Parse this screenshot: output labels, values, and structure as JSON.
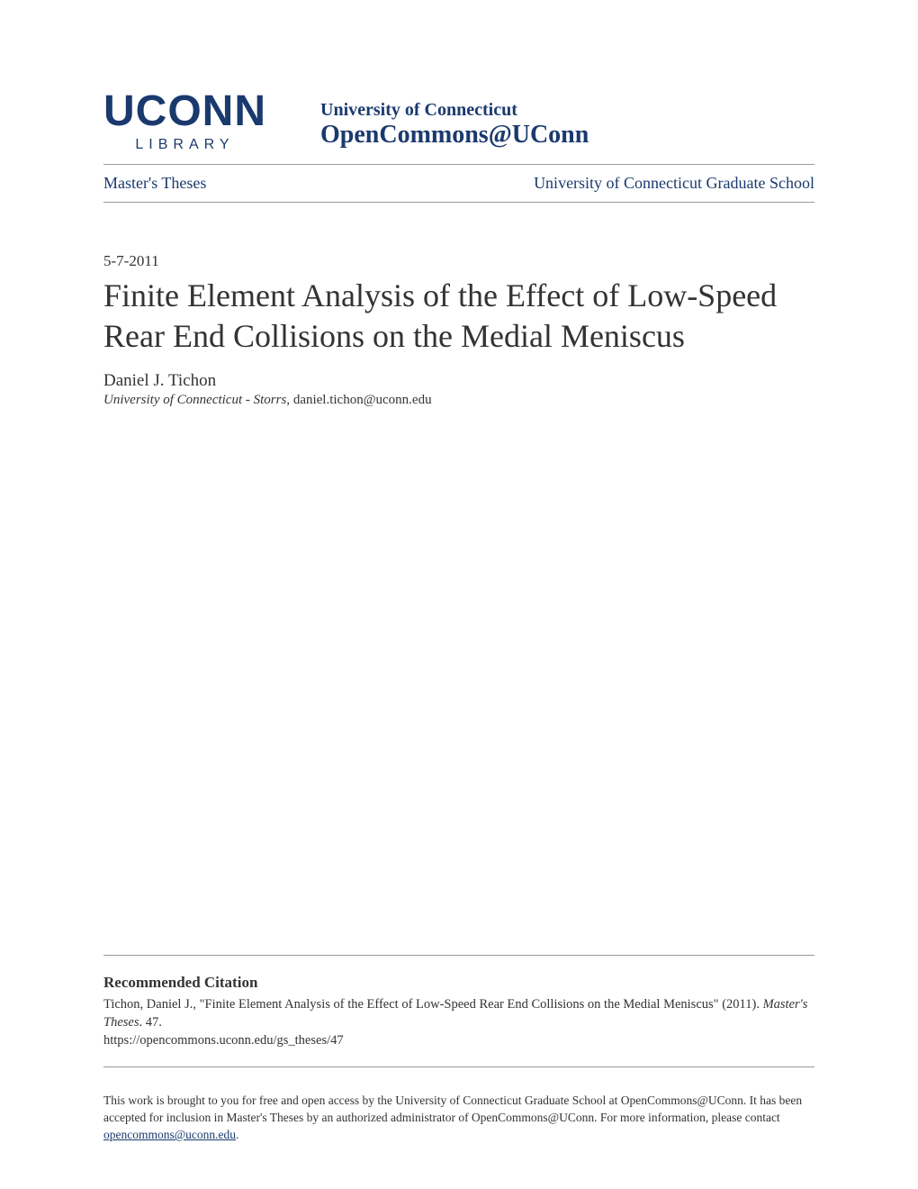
{
  "logo": {
    "main": "UCONN",
    "sub": "LIBRARY"
  },
  "header": {
    "university": "University of Connecticut",
    "repository": "OpenCommons@UConn"
  },
  "nav": {
    "left": "Master's Theses",
    "right": "University of Connecticut Graduate School"
  },
  "date": "5-7-2011",
  "title": "Finite Element Analysis of the Effect of Low-Speed Rear End Collisions on the Medial Meniscus",
  "author": "Daniel J. Tichon",
  "affiliation_institution": "University of Connecticut - Storrs",
  "affiliation_email": ", daniel.tichon@uconn.edu",
  "citation": {
    "heading": "Recommended Citation",
    "text_prefix": "Tichon, Daniel J., \"Finite Element Analysis of the Effect of Low-Speed Rear End Collisions on the Medial Meniscus\" (2011). ",
    "text_italic": "Master's Theses",
    "text_suffix": ". 47.",
    "url": "https://opencommons.uconn.edu/gs_theses/47"
  },
  "footer": {
    "text_prefix": "This work is brought to you for free and open access by the University of Connecticut Graduate School at OpenCommons@UConn. It has been accepted for inclusion in Master's Theses by an authorized administrator of OpenCommons@UConn. For more information, please contact ",
    "link_text": "opencommons@uconn.edu",
    "text_suffix": "."
  },
  "colors": {
    "brand": "#1a3a6e",
    "text": "#333333",
    "divider": "#999999",
    "background": "#ffffff"
  }
}
